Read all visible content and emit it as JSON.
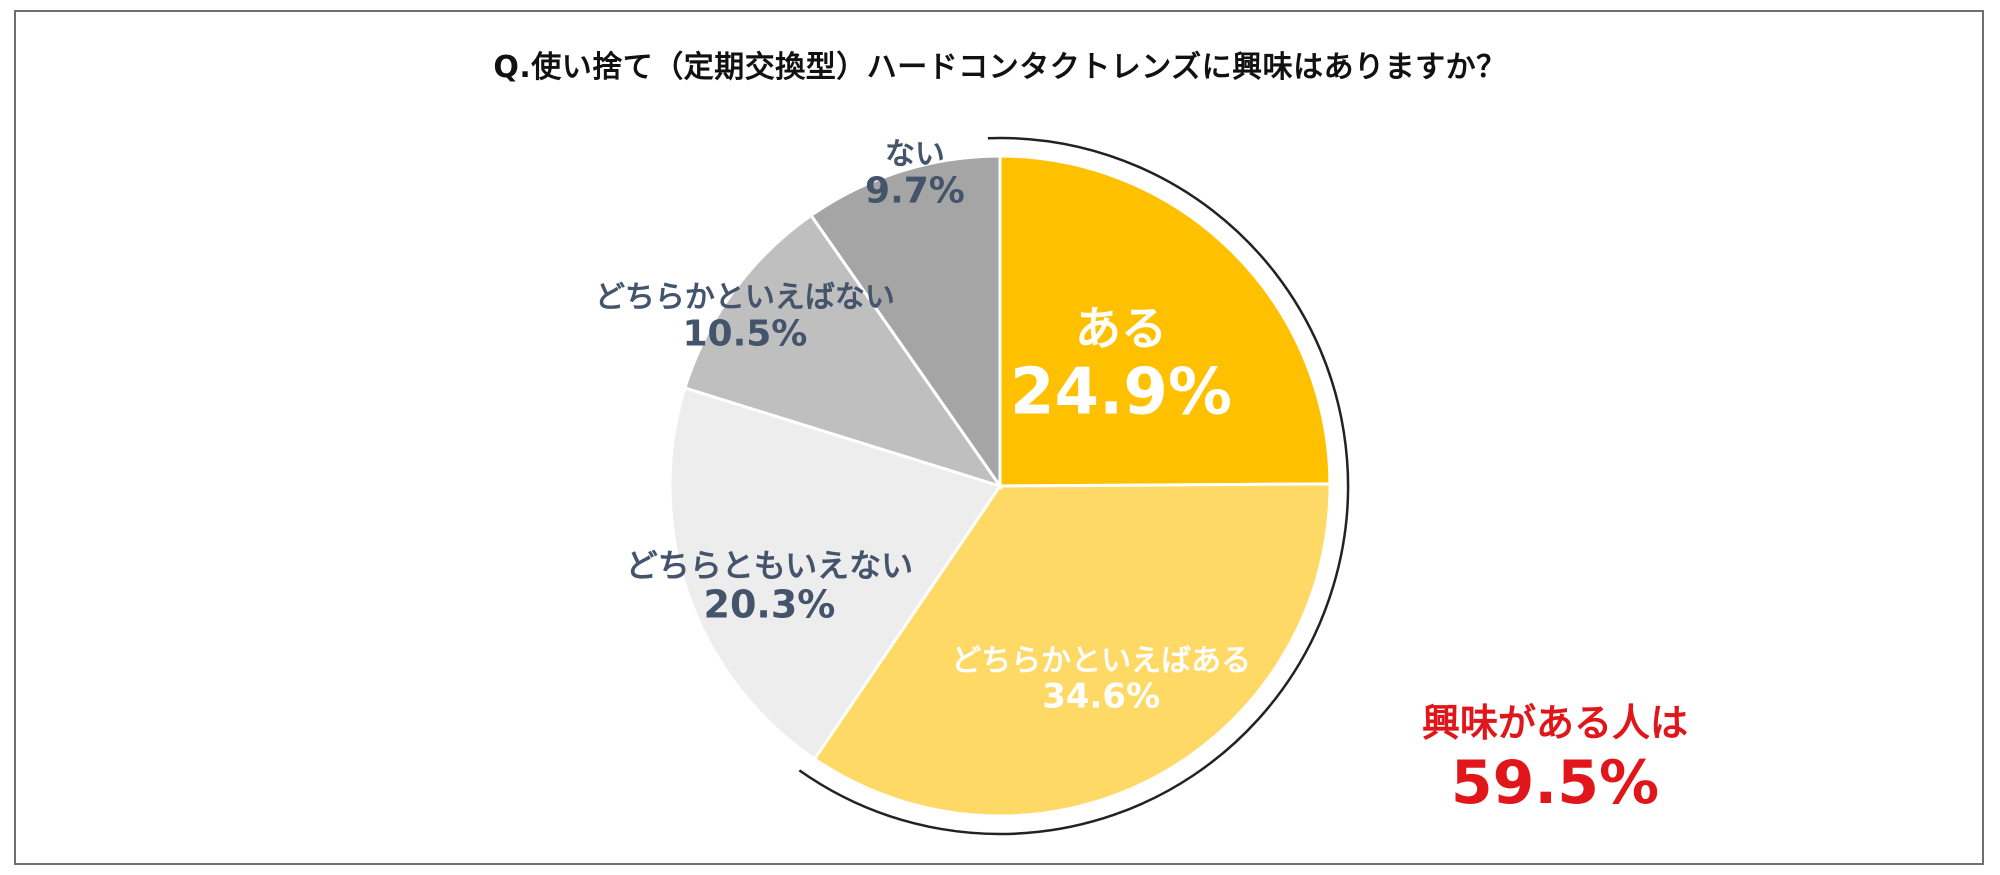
{
  "chart_data": {
    "type": "pie",
    "title": "Q.使い捨て（定期交換型）ハードコンタクトレンズに興味はありますか？",
    "slices": [
      {
        "label": "ある",
        "value": 24.9,
        "value_text": "24.9%",
        "color": "#ffc000",
        "text_color": "#ffffff"
      },
      {
        "label": "どちらかといえばある",
        "value": 34.6,
        "value_text": "34.6%",
        "color": "#ffd966",
        "text_color": "#ffffff"
      },
      {
        "label": "どちらともいえない",
        "value": 20.3,
        "value_text": "20.3%",
        "color": "#ededed",
        "text_color": "#44546a"
      },
      {
        "label": "どちらかといえばない",
        "value": 10.5,
        "value_text": "10.5%",
        "color": "#bfbfbf",
        "text_color": "#44546a"
      },
      {
        "label": "ない",
        "value": 9.7,
        "value_text": "9.7%",
        "color": "#a5a5a5",
        "text_color": "#44546a"
      }
    ],
    "start_angle": "12 o'clock",
    "direction": "clockwise",
    "legend": "none",
    "data_labels": "category and percentage",
    "highlight_bracket": "arc around first two slices",
    "callout": {
      "label": "興味がある人は",
      "value": "59.5%",
      "color": "#e0161b"
    }
  }
}
